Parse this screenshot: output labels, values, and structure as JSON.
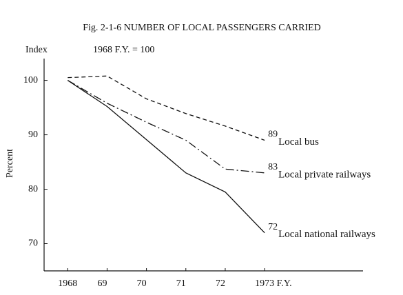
{
  "chart_data": {
    "type": "line",
    "title": "Fig. 2-1-6  NUMBER OF LOCAL PASSENGERS CARRIED",
    "y_unit_label": "Index",
    "base_note": "1968 F.Y. = 100",
    "ylabel": "Percent",
    "x": [
      1968,
      1969,
      1970,
      1971,
      1972,
      1973
    ],
    "xlim": [
      1967.4,
      1975.5
    ],
    "xticks": [
      {
        "value": 1968,
        "label": "1968"
      },
      {
        "value": 1969,
        "label": "69"
      },
      {
        "value": 1970,
        "label": "70"
      },
      {
        "value": 1971,
        "label": "71"
      },
      {
        "value": 1972,
        "label": "72"
      },
      {
        "value": 1973,
        "label": "1973 F.Y."
      }
    ],
    "ylim": [
      65,
      104
    ],
    "yticks": [
      70,
      80,
      90,
      100
    ],
    "series": [
      {
        "name": "Local bus",
        "color": "#111111",
        "dash": "6,4",
        "values": [
          100.5,
          100.8,
          96.6,
          93.9,
          91.6,
          89
        ]
      },
      {
        "name": "Local private railways",
        "color": "#111111",
        "dash": "12,4,2,4",
        "values": [
          100,
          95.8,
          92.3,
          89.0,
          83.7,
          83
        ]
      },
      {
        "name": "Local national railways",
        "color": "#111111",
        "dash": "none",
        "values": [
          100,
          95.2,
          89.1,
          83.0,
          79.5,
          72
        ]
      }
    ]
  }
}
